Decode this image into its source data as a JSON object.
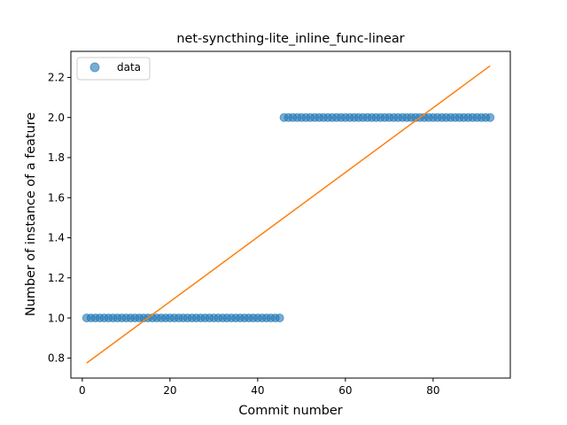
{
  "chart_data": {
    "type": "scatter",
    "title": "net-syncthing-lite_inline_func-linear",
    "xlabel": "Commit number",
    "ylabel": "Number of instance of a feature",
    "xlim": [
      -2.6,
      97.6
    ],
    "ylim": [
      0.7,
      2.33
    ],
    "x_ticks": [
      0,
      20,
      40,
      60,
      80
    ],
    "y_ticks": [
      0.8,
      1.0,
      1.2,
      1.4,
      1.6,
      1.8,
      2.0,
      2.2
    ],
    "grid": false,
    "legend": {
      "position": "top-left",
      "entries": [
        "data"
      ]
    },
    "colors": {
      "data": "#1f77b4",
      "fit": "#ff7f0e"
    },
    "series": [
      {
        "name": "data",
        "kind": "scatter",
        "segments": [
          {
            "x_start": 1,
            "x_end": 45,
            "y": 1.0
          },
          {
            "x_start": 46,
            "x_end": 93,
            "y": 2.0
          }
        ]
      },
      {
        "kind": "line",
        "points": [
          [
            1,
            0.775
          ],
          [
            93,
            2.258
          ]
        ]
      }
    ]
  }
}
